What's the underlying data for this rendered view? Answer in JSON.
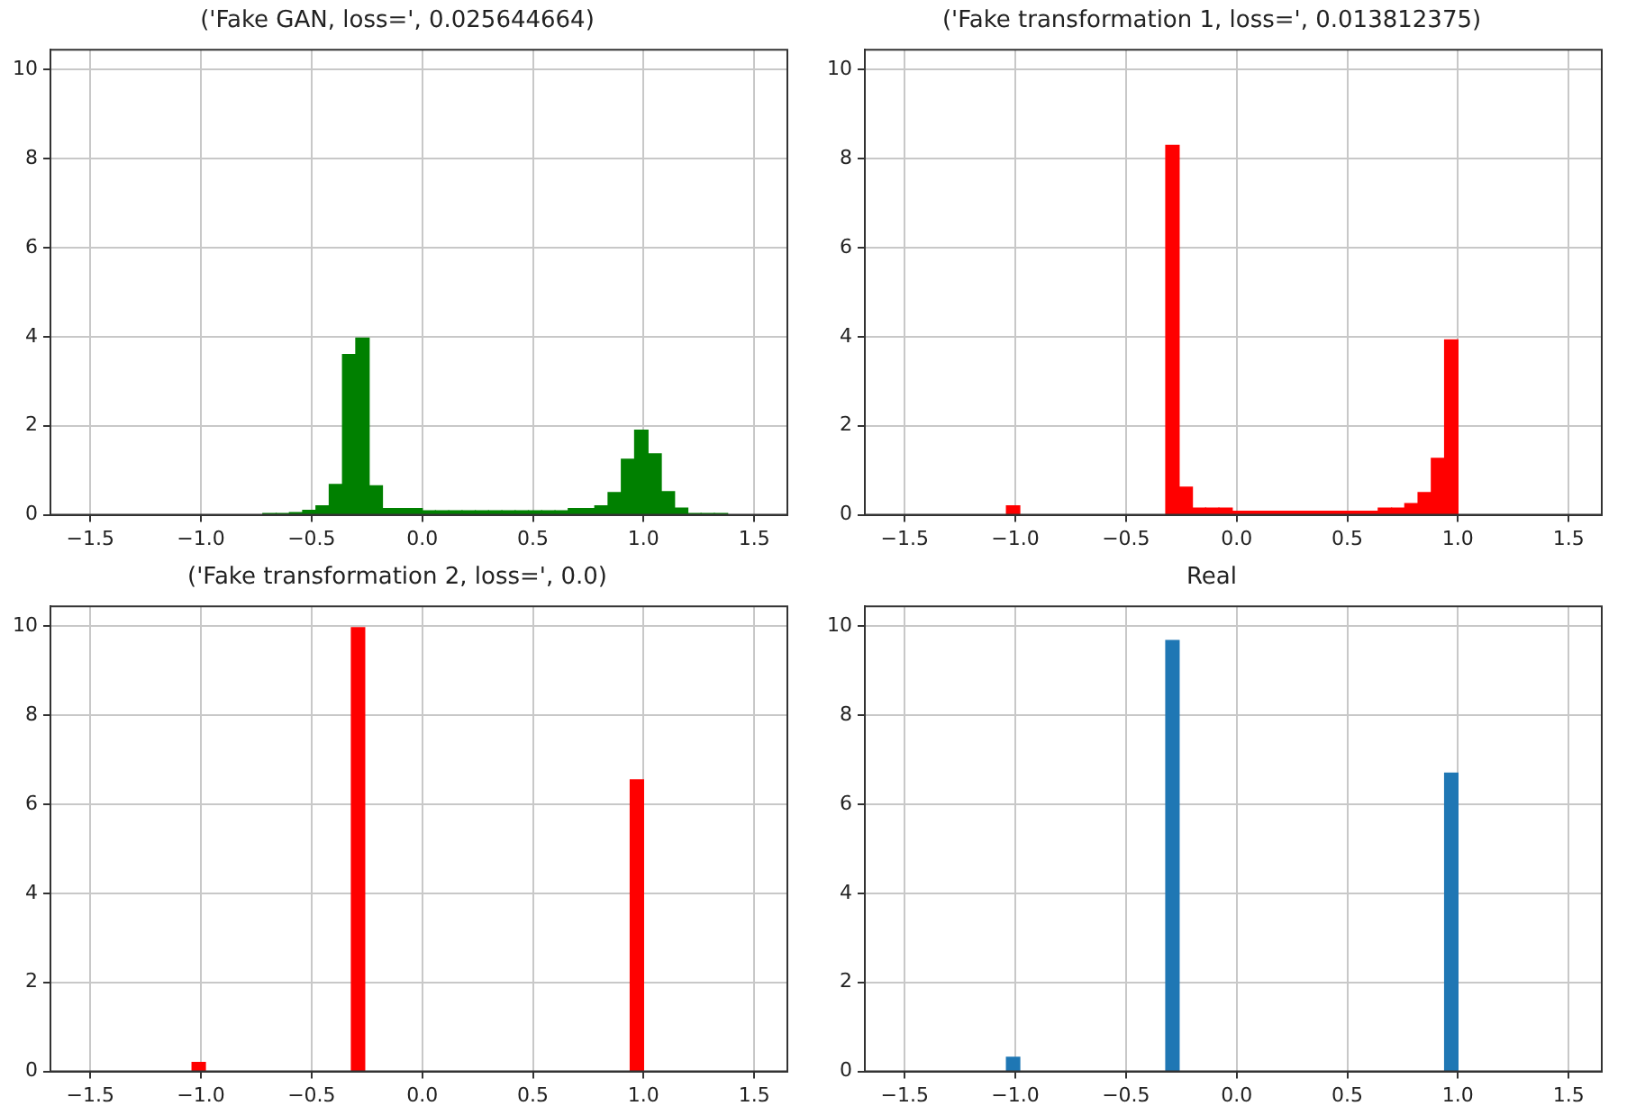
{
  "chart_data": [
    {
      "type": "histogram",
      "title": "('Fake GAN, loss=', 0.025644664)",
      "color": "#008000",
      "bins": [
        -0.72,
        -0.66,
        -0.6,
        -0.54,
        -0.48,
        -0.42,
        -0.36,
        -0.3,
        -0.24,
        -0.18,
        -0.12,
        -0.06,
        0,
        0.06,
        0.12,
        0.18,
        0.24,
        0.3,
        0.36,
        0.42,
        0.48,
        0.54,
        0.6,
        0.66,
        0.72,
        0.78,
        0.84,
        0.9,
        0.96,
        1.02,
        1.08,
        1.14,
        1.2,
        1.26,
        1.32,
        1.38
      ],
      "values": [
        0.03,
        0.03,
        0.05,
        0.1,
        0.2,
        0.68,
        3.6,
        3.97,
        0.65,
        0.14,
        0.14,
        0.14,
        0.09,
        0.09,
        0.09,
        0.09,
        0.09,
        0.09,
        0.09,
        0.09,
        0.09,
        0.09,
        0.09,
        0.14,
        0.14,
        0.2,
        0.5,
        1.25,
        1.9,
        1.37,
        0.52,
        0.15,
        0.03,
        0.03,
        0.03
      ],
      "xlim": [
        -1.68,
        1.65
      ],
      "xticks": [
        {
          "value": -1.5,
          "label": "−1.5"
        },
        {
          "value": -1,
          "label": "−1.0"
        },
        {
          "value": -0.5,
          "label": "−0.5"
        },
        {
          "value": 0,
          "label": "0.0"
        },
        {
          "value": 0.5,
          "label": "0.5"
        },
        {
          "value": 1,
          "label": "1.0"
        },
        {
          "value": 1.5,
          "label": "1.5"
        }
      ],
      "ylim": [
        0,
        10.45
      ],
      "yticks": [
        0,
        2,
        4,
        6,
        8,
        10
      ],
      "grid": true
    },
    {
      "type": "histogram",
      "title": "('Fake transformation 1, loss=', 0.013812375)",
      "color": "#ff0000",
      "bins": [
        -1.04,
        -0.98,
        -0.32,
        -0.26,
        -0.2,
        -0.14,
        -0.08,
        -0.02,
        0.04,
        0.1,
        0.16,
        0.22,
        0.28,
        0.34,
        0.4,
        0.46,
        0.52,
        0.58,
        0.64,
        0.7,
        0.76,
        0.82,
        0.88,
        0.94,
        1.0
      ],
      "values": [
        0.2,
        0,
        8.3,
        0.62,
        0.15,
        0.15,
        0.15,
        0.08,
        0.08,
        0.08,
        0.08,
        0.08,
        0.08,
        0.08,
        0.08,
        0.08,
        0.08,
        0.08,
        0.15,
        0.15,
        0.25,
        0.5,
        1.27,
        3.93
      ],
      "xlim": [
        -1.68,
        1.65
      ],
      "xticks": [
        {
          "value": -1.5,
          "label": "−1.5"
        },
        {
          "value": -1,
          "label": "−1.0"
        },
        {
          "value": -0.5,
          "label": "−0.5"
        },
        {
          "value": 0,
          "label": "0.0"
        },
        {
          "value": 0.5,
          "label": "0.5"
        },
        {
          "value": 1,
          "label": "1.0"
        },
        {
          "value": 1.5,
          "label": "1.5"
        }
      ],
      "ylim": [
        0,
        10.45
      ],
      "yticks": [
        0,
        2,
        4,
        6,
        8,
        10
      ],
      "grid": true
    },
    {
      "type": "histogram",
      "title": "('Fake transformation 2, loss=', 0.0)",
      "color": "#ff0000",
      "bins": [
        -1.04,
        -0.98,
        -0.32,
        -0.26,
        0.94,
        1.0
      ],
      "values": [
        0.2,
        0,
        9.97,
        0,
        6.55
      ],
      "xlim": [
        -1.68,
        1.65
      ],
      "xticks": [
        {
          "value": -1.5,
          "label": "−1.5"
        },
        {
          "value": -1,
          "label": "−1.0"
        },
        {
          "value": -0.5,
          "label": "−0.5"
        },
        {
          "value": 0,
          "label": "0.0"
        },
        {
          "value": 0.5,
          "label": "0.5"
        },
        {
          "value": 1,
          "label": "1.0"
        },
        {
          "value": 1.5,
          "label": "1.5"
        }
      ],
      "ylim": [
        0,
        10.45
      ],
      "yticks": [
        0,
        2,
        4,
        6,
        8,
        10
      ],
      "grid": true
    },
    {
      "type": "histogram",
      "title": "Real",
      "color": "#1f77b4",
      "bins": [
        -1.04,
        -0.98,
        -0.32,
        -0.26,
        0.94,
        1.0
      ],
      "values": [
        0.32,
        0,
        9.68,
        0,
        6.7
      ],
      "xlim": [
        -1.68,
        1.65
      ],
      "xticks": [
        {
          "value": -1.5,
          "label": "−1.5"
        },
        {
          "value": -1,
          "label": "−1.0"
        },
        {
          "value": -0.5,
          "label": "−0.5"
        },
        {
          "value": 0,
          "label": "0.0"
        },
        {
          "value": 0.5,
          "label": "0.5"
        },
        {
          "value": 1,
          "label": "1.0"
        },
        {
          "value": 1.5,
          "label": "1.5"
        }
      ],
      "ylim": [
        0,
        10.45
      ],
      "yticks": [
        0,
        2,
        4,
        6,
        8,
        10
      ],
      "grid": true
    }
  ]
}
